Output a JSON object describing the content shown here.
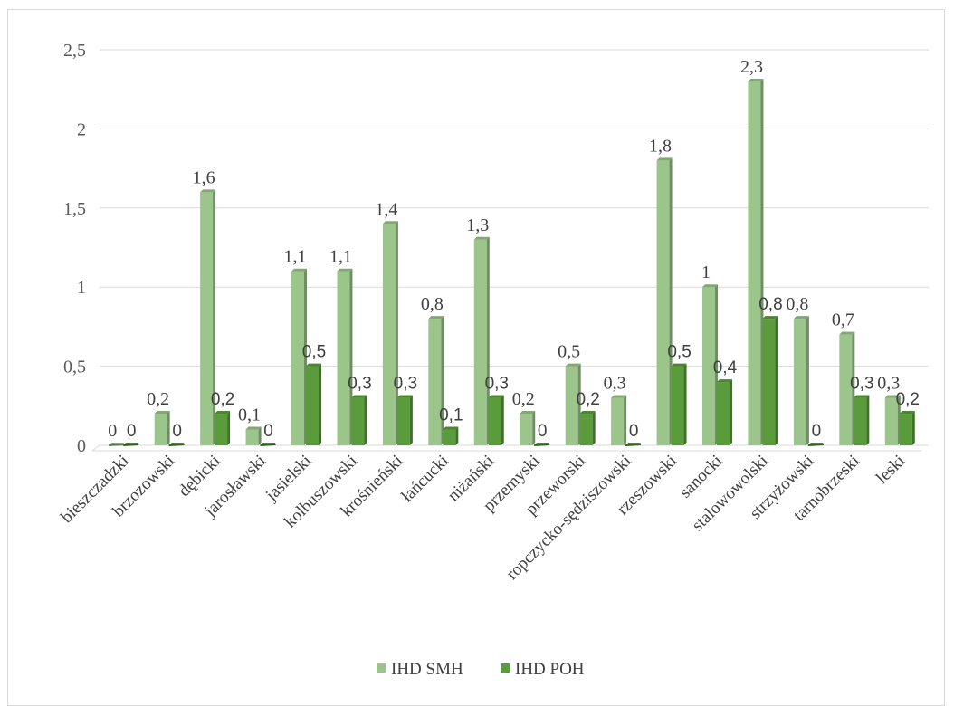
{
  "chart_data": {
    "type": "bar",
    "categories": [
      "bieszczadzki",
      "brzozowski",
      "dębicki",
      "jarosławski",
      "jasielski",
      "kolbuszowski",
      "krośnieński",
      "łańcucki",
      "niżański",
      "przemyski",
      "przeworski",
      "ropczycko-sędziszowski",
      "rzeszowski",
      "sanocki",
      "stalowowolski",
      "strzyżowski",
      "tarnobrzeski",
      "leski"
    ],
    "series": [
      {
        "name": "IHD SMH",
        "values": [
          0,
          0.2,
          1.6,
          0.1,
          1.1,
          1.1,
          1.4,
          0.8,
          1.3,
          0.2,
          0.5,
          0.3,
          1.8,
          1,
          2.3,
          0.8,
          0.7,
          0.3
        ],
        "labels": [
          "0",
          "0,2",
          "1,6",
          "0,1",
          "1,1",
          "1,1",
          "1,4",
          "0,8",
          "1,3",
          "0,2",
          "0,5",
          "0,3",
          "1,8",
          "1",
          "2,3",
          "0,8",
          "0,7",
          "0,3"
        ],
        "color": "#9bc58a"
      },
      {
        "name": "IHD POH",
        "values": [
          0,
          0,
          0.2,
          0,
          0.5,
          0.3,
          0.3,
          0.1,
          0.3,
          0,
          0.2,
          0,
          0.5,
          0.4,
          0.8,
          0,
          0.3,
          0.2
        ],
        "labels": [
          "0",
          "0",
          "0,2",
          "0",
          "0,5",
          "0,3",
          "0,3",
          "0,1",
          "0,3",
          "0",
          "0,2",
          "0",
          "0,5",
          "0,4",
          "0,8",
          "0",
          "0,3",
          "0,2"
        ],
        "color": "#5a9c3c"
      }
    ],
    "yticks": [
      "0",
      "0,5",
      "1",
      "1,5",
      "2",
      "2,5"
    ],
    "ylim": [
      0,
      2.5
    ],
    "grid": true,
    "legend_position": "bottom"
  }
}
